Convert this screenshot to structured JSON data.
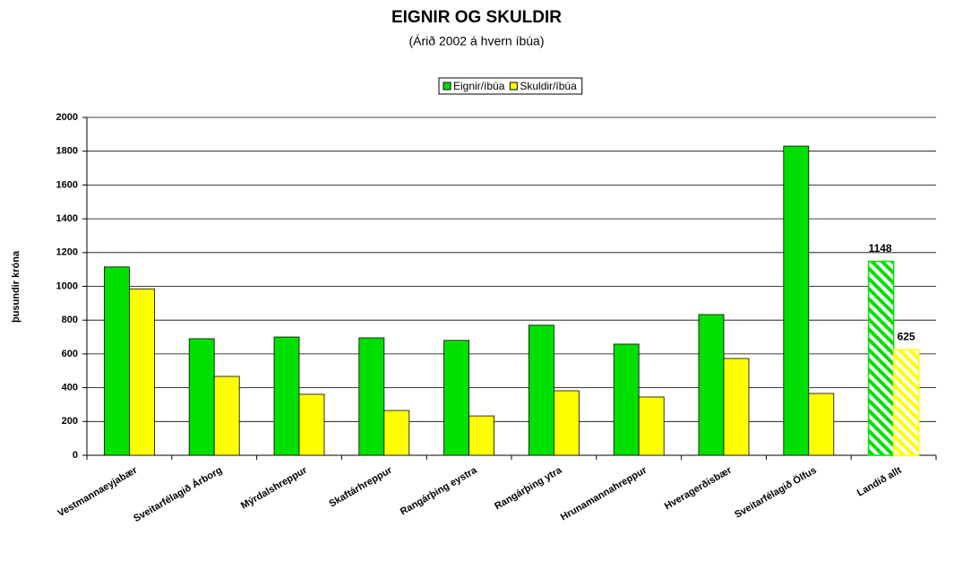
{
  "chart_data": {
    "type": "bar",
    "title": "EIGNIR OG SKULDIR",
    "subtitle": "(Árið 2002 á hvern íbúa)",
    "y_label": "þusundir króna",
    "categories": [
      "Vestmannaeyjabær",
      "Sveitarfélagið Árborg",
      "Mýrdalshreppur",
      "Skaftárhreppur",
      "Rangárþing eystra",
      "Rangárþing ytra",
      "Hrunamannahreppur",
      "Hveragerðisbær",
      "Sveitarfélagið Ölfus",
      "Landið allt"
    ],
    "series": [
      {
        "name": "Eignir/íbúa",
        "color": "#00e000",
        "values": [
          1115,
          690,
          700,
          695,
          680,
          770,
          658,
          833,
          1830,
          1148
        ]
      },
      {
        "name": "Skuldir/íbúa",
        "color": "#ffff00",
        "values": [
          985,
          467,
          361,
          265,
          233,
          382,
          345,
          573,
          366,
          625
        ]
      }
    ],
    "hatched": [
      9
    ],
    "ylim": [
      0,
      2000
    ],
    "yticks": [
      0,
      200,
      400,
      600,
      800,
      1000,
      1200,
      1400,
      1600,
      1800,
      2000
    ],
    "grid": true,
    "legend": "top"
  }
}
